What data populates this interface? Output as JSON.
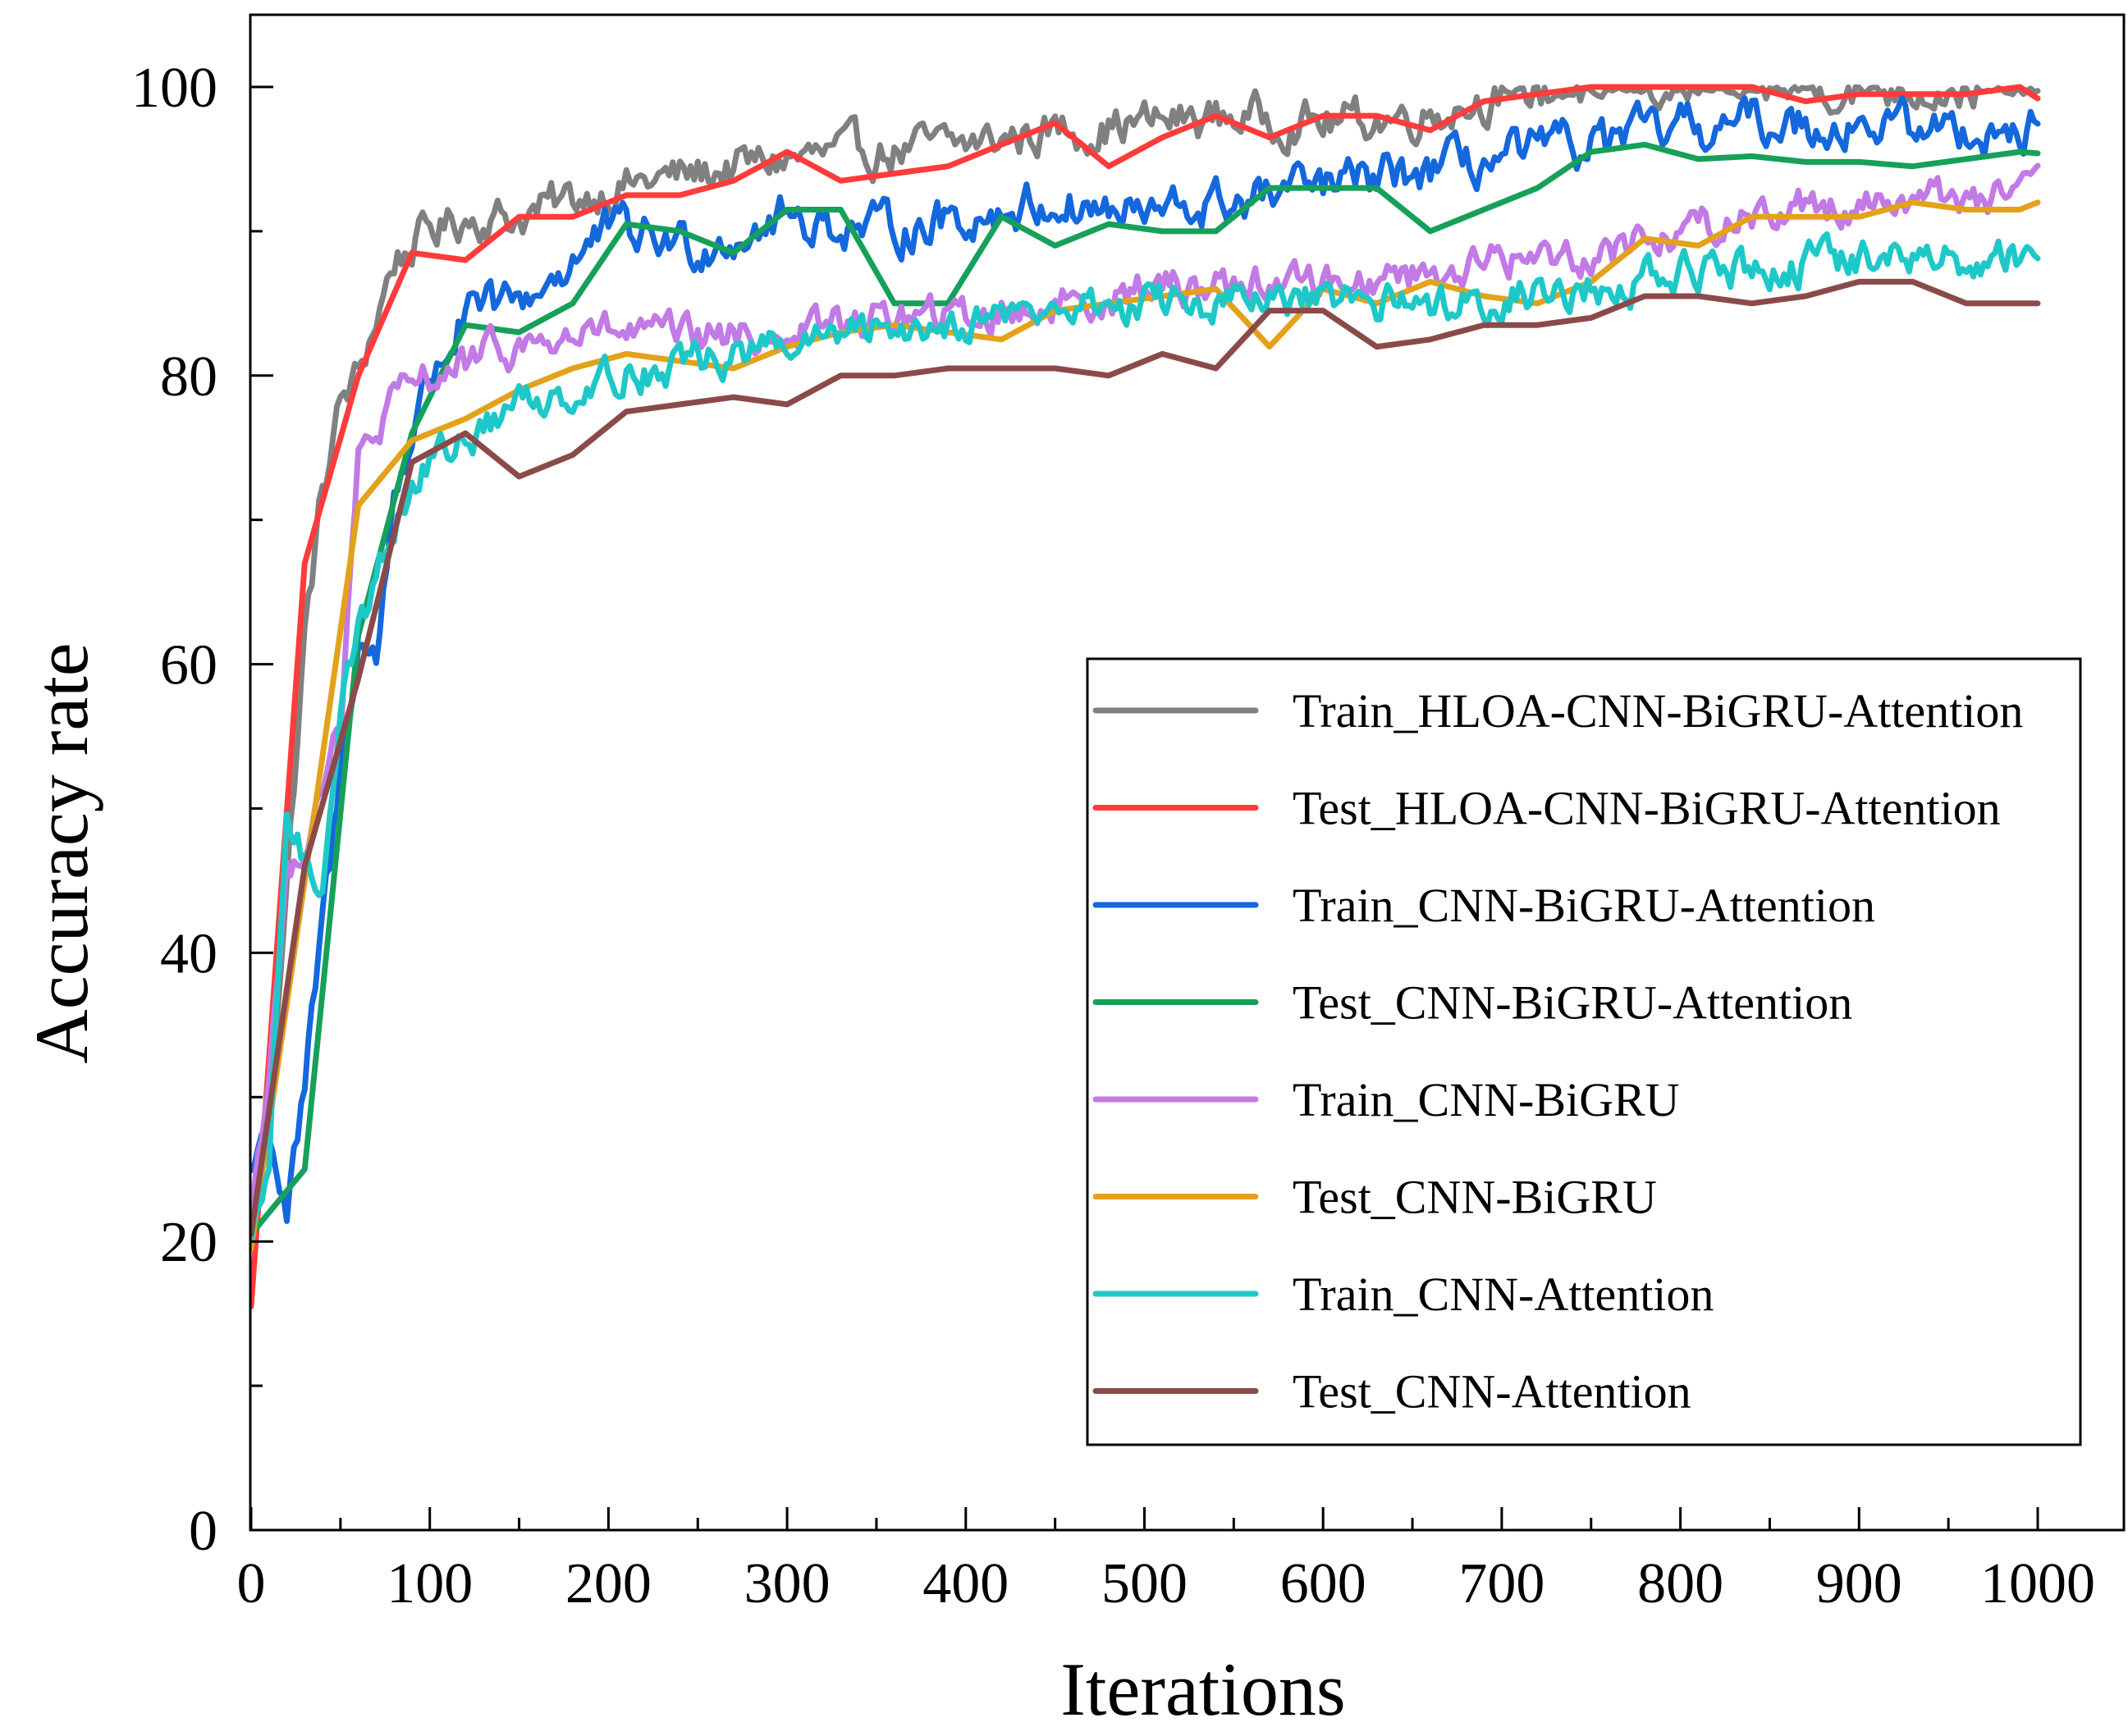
{
  "chart_data": {
    "type": "line",
    "title": "",
    "xlabel": "Iterations",
    "ylabel": "Accuracy rate",
    "xlim": [
      0,
      1000
    ],
    "ylim": [
      0,
      105
    ],
    "x_ticks": [
      0,
      100,
      200,
      300,
      400,
      500,
      600,
      700,
      800,
      900,
      1000
    ],
    "y_ticks": [
      0,
      20,
      40,
      60,
      80,
      100
    ],
    "grid": false,
    "legend_position": "right",
    "series": [
      {
        "name": "Train_HLOA-CNN-BiGRU-Attention",
        "color": "#808080",
        "noise": 1.2,
        "x": [
          0,
          10,
          20,
          30,
          40,
          50,
          60,
          70,
          80,
          90,
          100,
          120,
          150,
          200,
          250,
          300,
          350,
          400,
          450,
          500,
          550,
          600,
          650,
          700,
          750,
          800,
          850,
          900,
          950,
          1000
        ],
        "y": [
          22,
          30,
          45,
          62,
          72,
          78,
          80,
          84,
          88,
          89,
          90,
          91,
          91,
          93,
          94,
          95,
          95.5,
          96,
          97,
          97.5,
          98,
          97.5,
          98,
          99.5,
          100,
          100,
          100,
          100,
          100,
          100
        ]
      },
      {
        "name": "Test_HLOA-CNN-BiGRU-Attention",
        "color": "#FF3B3B",
        "noise": 0,
        "x": [
          0,
          30,
          60,
          90,
          120,
          150,
          180,
          210,
          240,
          270,
          300,
          330,
          360,
          390,
          420,
          450,
          480,
          510,
          540,
          570,
          600,
          630,
          660,
          690,
          720,
          750,
          780,
          810,
          840,
          870,
          900,
          930,
          960,
          990,
          1000
        ],
        "y": [
          15.5,
          67,
          80,
          88.5,
          88,
          91,
          91,
          92.5,
          92.5,
          93.5,
          95.5,
          93.5,
          94,
          94.5,
          96,
          97.5,
          94.5,
          96.5,
          98,
          96.5,
          98,
          98,
          97,
          99,
          99.5,
          100,
          100,
          100,
          100,
          99,
          99.5,
          99.5,
          99.5,
          100,
          99.2
        ]
      },
      {
        "name": "Train_CNN-BiGRU-Attention",
        "color": "#1468DC",
        "noise": 1.3,
        "x": [
          0,
          10,
          20,
          30,
          40,
          50,
          60,
          70,
          80,
          100,
          120,
          150,
          200,
          250,
          300,
          350,
          400,
          450,
          500,
          550,
          600,
          650,
          700,
          750,
          800,
          850,
          900,
          950,
          1000
        ],
        "y": [
          25,
          28,
          22,
          30,
          42,
          52,
          62,
          60,
          72,
          80,
          84,
          85,
          90,
          89,
          91,
          90,
          91,
          92,
          91,
          92,
          93,
          94,
          95,
          96,
          97,
          97.5,
          97.5,
          97,
          97
        ]
      },
      {
        "name": "Test_CNN-BiGRU-Attention",
        "color": "#16A05A",
        "noise": 0,
        "x": [
          0,
          30,
          60,
          90,
          120,
          150,
          180,
          210,
          240,
          270,
          300,
          330,
          360,
          390,
          420,
          450,
          480,
          510,
          540,
          570,
          600,
          630,
          660,
          690,
          720,
          750,
          780,
          810,
          840,
          870,
          900,
          930,
          960,
          990,
          1000
        ],
        "y": [
          20.5,
          25,
          62,
          76,
          83.5,
          83,
          85,
          90.5,
          90,
          88.5,
          91.5,
          91.5,
          85,
          85,
          91,
          89,
          90.5,
          90,
          90,
          93,
          93,
          93,
          90,
          91.5,
          93,
          95.5,
          96,
          95,
          95.2,
          94.8,
          94.8,
          94.5,
          95,
          95.5,
          95.4
        ]
      },
      {
        "name": "Train_CNN-BiGRU",
        "color": "#C27AE6",
        "noise": 1.1,
        "x": [
          0,
          10,
          20,
          30,
          40,
          50,
          60,
          80,
          100,
          150,
          200,
          250,
          300,
          350,
          400,
          450,
          500,
          550,
          600,
          650,
          700,
          750,
          800,
          850,
          900,
          950,
          1000
        ],
        "y": [
          22,
          32,
          45,
          48,
          52,
          55,
          74,
          78,
          80,
          82,
          83,
          82.5,
          83,
          84,
          84,
          85,
          86,
          86.5,
          86.5,
          87,
          88,
          88.5,
          90,
          91.5,
          92,
          92.5,
          92.5
        ]
      },
      {
        "name": "Test_CNN-BiGRU",
        "color": "#E3A21A",
        "noise": 0,
        "x": [
          0,
          30,
          60,
          90,
          120,
          150,
          180,
          210,
          240,
          270,
          300,
          330,
          360,
          390,
          420,
          450,
          480,
          510,
          540,
          570,
          600,
          630,
          660,
          690,
          720,
          750,
          780,
          810,
          840,
          870,
          900,
          930,
          960,
          990,
          1000
        ],
        "y": [
          19.5,
          45,
          71,
          75.5,
          77,
          79,
          80.5,
          81.5,
          81,
          80.5,
          82,
          83,
          83.5,
          83,
          82.5,
          84.5,
          85,
          85.5,
          86,
          82,
          86,
          85,
          86.5,
          85.5,
          85,
          86.5,
          89.5,
          89,
          91,
          91,
          91,
          92,
          91.5,
          91.5,
          92
        ]
      },
      {
        "name": "Train_CNN-Attention",
        "color": "#1FC8C8",
        "noise": 1.1,
        "x": [
          0,
          10,
          20,
          30,
          40,
          50,
          60,
          70,
          80,
          100,
          150,
          200,
          250,
          300,
          350,
          400,
          450,
          500,
          550,
          600,
          650,
          700,
          750,
          800,
          850,
          900,
          950,
          1000
        ],
        "y": [
          19,
          25,
          50,
          46,
          45,
          58,
          62,
          66,
          70,
          74,
          78,
          80,
          81,
          82,
          83,
          84,
          84.5,
          85,
          85,
          85,
          85,
          85.5,
          86,
          87,
          87.5,
          88,
          88,
          88.5
        ]
      },
      {
        "name": "Test_CNN-Attention",
        "color": "#8B4A4A",
        "noise": 0,
        "x": [
          0,
          30,
          60,
          90,
          120,
          150,
          180,
          210,
          240,
          270,
          300,
          330,
          360,
          390,
          420,
          450,
          480,
          510,
          540,
          570,
          600,
          630,
          660,
          690,
          720,
          750,
          780,
          810,
          840,
          870,
          900,
          930,
          960,
          990,
          1000
        ],
        "y": [
          20.5,
          46,
          59,
          74,
          76,
          73,
          74.5,
          77.5,
          78,
          78.5,
          78,
          80,
          80,
          80.5,
          80.5,
          80.5,
          80,
          81.5,
          80.5,
          84.5,
          84.5,
          82,
          82.5,
          83.5,
          83.5,
          84,
          85.5,
          85.5,
          85,
          85.5,
          86.5,
          86.5,
          85,
          85,
          85
        ]
      }
    ]
  }
}
